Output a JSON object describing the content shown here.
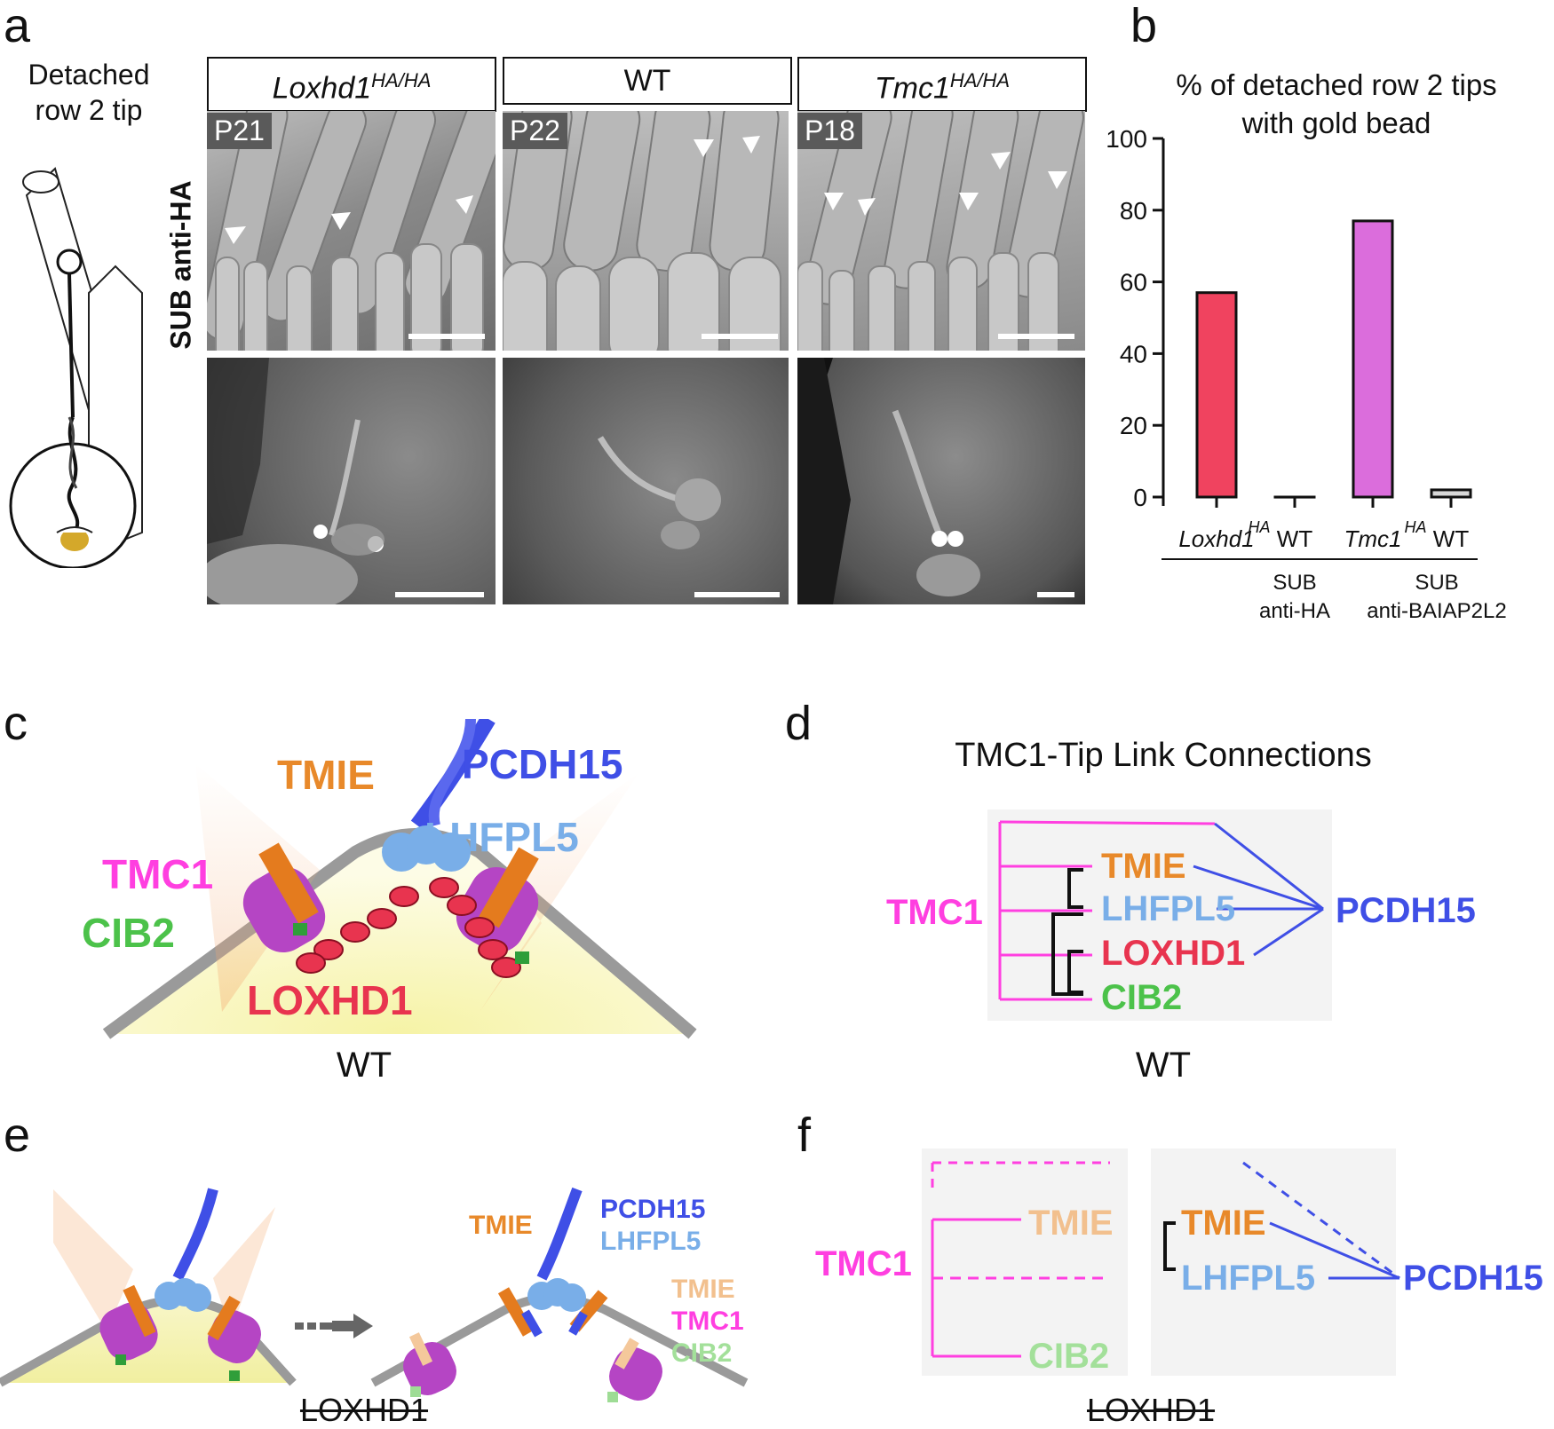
{
  "panels": {
    "a": {
      "letter": "a",
      "diagram_label_line1": "Detached",
      "diagram_label_line2": "row 2 tip",
      "row_label": "SUB anti-HA",
      "columns": [
        {
          "genotype": "Loxhd1",
          "superscript": "HA/HA",
          "age": "P21"
        },
        {
          "genotype": "WT",
          "superscript": "",
          "age": "P22"
        },
        {
          "genotype": "Tmc1",
          "superscript": "HA/HA",
          "age": "P18"
        }
      ]
    },
    "b": {
      "letter": "b"
    },
    "c": {
      "letter": "c",
      "caption": "WT",
      "labels": {
        "tmie": "TMIE",
        "pcdh15": "PCDH15",
        "lhfpl5": "LHFPL5",
        "tmc1": "TMC1",
        "cib2": "CIB2",
        "loxhd1": "LOXHD1"
      }
    },
    "d": {
      "letter": "d",
      "title": "TMC1-Tip Link Connections",
      "caption": "WT",
      "labels": {
        "tmc1": "TMC1",
        "tmie": "TMIE",
        "lhfpl5": "LHFPL5",
        "loxhd1": "LOXHD1",
        "cib2": "CIB2",
        "pcdh15": "PCDH15"
      }
    },
    "e": {
      "letter": "e",
      "caption": "LOXHD1",
      "labels": {
        "tmie": "TMIE",
        "pcdh15": "PCDH15",
        "lhfpl5": "LHFPL5",
        "tmie2": "TMIE",
        "tmc1": "TMC1",
        "cib2": "CIB2"
      }
    },
    "f": {
      "letter": "f",
      "caption": "LOXHD1",
      "labels": {
        "tmc1": "TMC1",
        "tmie": "TMIE",
        "cib2": "CIB2",
        "tmie2": "TMIE",
        "lhfpl5": "LHFPL5",
        "pcdh15": "PCDH15"
      }
    }
  },
  "colors": {
    "tmc1": "#ff3fe0",
    "tmie": "#e8892a",
    "pcdh15": "#3f4fe6",
    "lhfpl5": "#79aee8",
    "cib2": "#4cc24a",
    "loxhd1": "#e8344f",
    "bar_gray": "#d8d8d8"
  },
  "chart_data": {
    "type": "bar",
    "title": "% of detached row 2 tips with gold bead",
    "title_line1": "% of detached row 2 tips",
    "title_line2": "with gold bead",
    "categories": [
      "Loxhd1HA",
      "WT",
      "Tmc1HA",
      "WT"
    ],
    "category_labels": [
      {
        "main": "Loxhd1",
        "sup": "HA"
      },
      {
        "main": "WT",
        "sup": ""
      },
      {
        "main": "Tmc1",
        "sup": "HA"
      },
      {
        "main": "WT",
        "sup": ""
      }
    ],
    "values": [
      57,
      0,
      77,
      2
    ],
    "bar_colors": [
      "#f0435f",
      "#ffffff",
      "#db6ddc",
      "#d8d8d8"
    ],
    "groups": [
      {
        "line1": "SUB",
        "line2": "anti-HA",
        "span": [
          0,
          2
        ]
      },
      {
        "line1": "SUB",
        "line2": "anti-BAIAP2L2",
        "span": [
          3,
          3
        ]
      }
    ],
    "ylim": [
      0,
      100
    ],
    "yticks": [
      0,
      20,
      40,
      60,
      80,
      100
    ],
    "ytick_labels": [
      "0",
      "20",
      "40",
      "60",
      "80",
      "100"
    ],
    "grid": false
  }
}
